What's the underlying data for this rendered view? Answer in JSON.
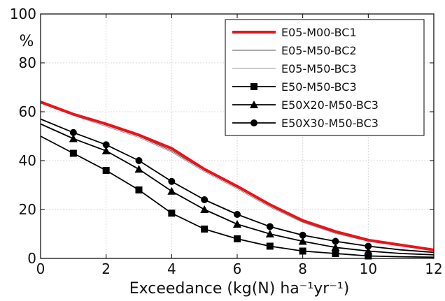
{
  "chart_data": {
    "type": "line",
    "title": "",
    "xlabel": "Exceedance (kg(N) ha⁻¹yr⁻¹)",
    "ylabel": "%",
    "xlim": [
      0,
      12
    ],
    "ylim": [
      0,
      100
    ],
    "x_ticks": [
      0,
      2,
      4,
      6,
      8,
      10,
      12
    ],
    "y_ticks": [
      0,
      20,
      40,
      60,
      80,
      100
    ],
    "grid": true,
    "legend_position": "top-right",
    "series": [
      {
        "name": "E05-M00-BC1",
        "color": "#e8141b",
        "style": "thick-line",
        "marker": "none",
        "x": [
          0,
          1,
          2,
          3,
          4,
          5,
          6,
          7,
          8,
          9,
          10,
          11,
          12
        ],
        "y": [
          64,
          59,
          55,
          50.5,
          45,
          36.5,
          29.5,
          22,
          15.5,
          11,
          7.5,
          5.5,
          3.5
        ]
      },
      {
        "name": "E05-M50-BC2",
        "color": "#555555",
        "style": "thin-line",
        "marker": "none",
        "x": [
          0,
          1,
          2,
          3,
          4,
          5,
          6,
          7,
          8,
          9,
          10,
          11,
          12
        ],
        "y": [
          64,
          59,
          54.5,
          50,
          44,
          36,
          29,
          21.5,
          15,
          10.5,
          7.2,
          5.2,
          3.3
        ]
      },
      {
        "name": "E05-M50-BC3",
        "color": "#999999",
        "style": "thin-line",
        "marker": "none",
        "x": [
          0,
          1,
          2,
          3,
          4,
          5,
          6,
          7,
          8,
          9,
          10,
          11,
          12
        ],
        "y": [
          63.5,
          58.5,
          54,
          49.5,
          43.5,
          35.5,
          28.5,
          21,
          14.7,
          10.2,
          7,
          5,
          3.2
        ]
      },
      {
        "name": "E50-M50-BC3",
        "color": "#000000",
        "style": "line",
        "marker": "square",
        "x": [
          0,
          1,
          2,
          3,
          4,
          5,
          6,
          7,
          8,
          9,
          10,
          11,
          12
        ],
        "y": [
          50,
          43,
          36,
          28,
          18.5,
          12,
          8,
          5,
          3,
          2,
          1,
          0.7,
          0.5
        ]
      },
      {
        "name": "E50X20-M50-BC3",
        "color": "#000000",
        "style": "line",
        "marker": "triangle",
        "x": [
          0,
          1,
          2,
          3,
          4,
          5,
          6,
          7,
          8,
          9,
          10,
          11,
          12
        ],
        "y": [
          55,
          49,
          44,
          36.5,
          27.5,
          20,
          14,
          10,
          7,
          4.5,
          3,
          2,
          1.5
        ]
      },
      {
        "name": "E50X30-M50-BC3",
        "color": "#000000",
        "style": "line",
        "marker": "circle",
        "x": [
          0,
          1,
          2,
          3,
          4,
          5,
          6,
          7,
          8,
          9,
          10,
          11,
          12
        ],
        "y": [
          57,
          51.5,
          46.5,
          40,
          31.5,
          24,
          18,
          13,
          9.5,
          7,
          5,
          3.5,
          2.5
        ]
      }
    ]
  }
}
